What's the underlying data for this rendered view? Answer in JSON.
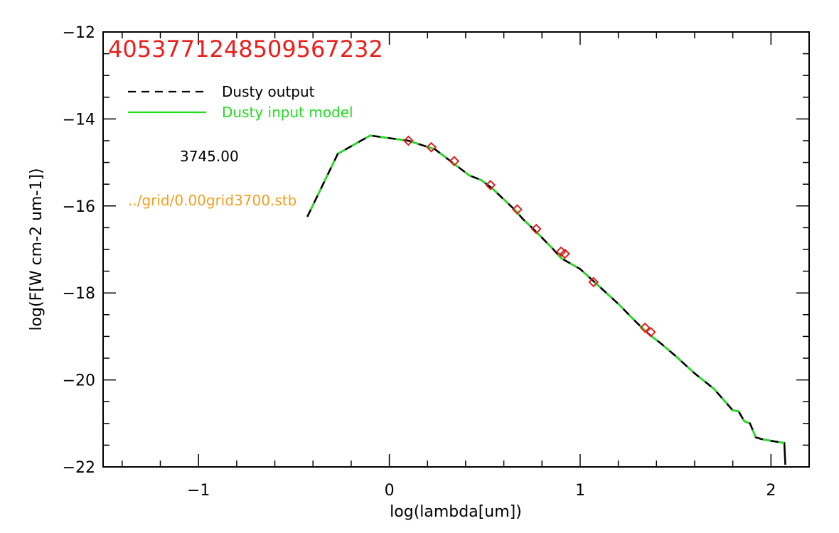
{
  "chart_data": {
    "type": "line",
    "title": "4053771248509567232",
    "xlabel": "log(lambda[um])",
    "ylabel": "log(F[W cm-2 um-1])",
    "xlim": [
      -1.5,
      2.2
    ],
    "ylim": [
      -22,
      -12
    ],
    "xticks": [
      -1,
      0,
      1,
      2
    ],
    "xtick_labels": [
      "−1",
      "0",
      "1",
      "2"
    ],
    "yticks": [
      -22,
      -20,
      -18,
      -16,
      -14,
      -12
    ],
    "ytick_labels": [
      "−22",
      "−20",
      "−18",
      "−16",
      "−14",
      "−12"
    ],
    "legend_position": "top-left",
    "grid": false,
    "annotations": {
      "temperature": "3745.00",
      "grid_file": "../grid/0.00grid3700.stb"
    },
    "colors": {
      "title": "#e8201e",
      "dusty_output": "#000000",
      "dusty_input": "#22dd22",
      "grid_file": "#f0a020",
      "markers": "#dd1f1f"
    },
    "series": [
      {
        "name": "Dusty output",
        "style": "dashed",
        "x": [
          -0.43,
          -0.27,
          -0.1,
          0.1,
          0.24,
          0.33,
          0.42,
          0.48,
          0.54,
          0.6,
          0.66,
          0.7,
          0.76,
          0.86,
          0.9,
          1.0,
          1.1,
          1.2,
          1.3,
          1.36,
          1.42,
          1.5,
          1.6,
          1.7,
          1.8,
          1.83,
          1.86,
          1.89,
          1.92,
          1.95,
          2.0,
          2.07,
          2.075
        ],
        "y": [
          -16.25,
          -14.8,
          -14.38,
          -14.5,
          -14.7,
          -15.0,
          -15.3,
          -15.4,
          -15.6,
          -15.85,
          -16.1,
          -16.3,
          -16.55,
          -17.0,
          -17.2,
          -17.45,
          -17.85,
          -18.25,
          -18.7,
          -18.95,
          -19.15,
          -19.45,
          -19.85,
          -20.2,
          -20.7,
          -20.72,
          -20.95,
          -21.0,
          -21.32,
          -21.36,
          -21.4,
          -21.45,
          -21.95
        ]
      },
      {
        "name": "Dusty input model",
        "style": "solid",
        "x": [
          -0.43,
          -0.27,
          -0.1,
          0.1,
          0.24,
          0.33,
          0.42,
          0.48,
          0.54,
          0.6,
          0.66,
          0.7,
          0.76,
          0.86,
          0.9,
          1.0,
          1.1,
          1.2,
          1.3,
          1.36,
          1.42,
          1.5,
          1.6,
          1.7,
          1.8,
          1.83,
          1.86,
          1.89,
          1.92,
          1.95,
          2.0,
          2.07
        ],
        "y": [
          -16.25,
          -14.8,
          -14.38,
          -14.5,
          -14.7,
          -15.0,
          -15.3,
          -15.4,
          -15.6,
          -15.85,
          -16.1,
          -16.3,
          -16.55,
          -17.0,
          -17.2,
          -17.45,
          -17.85,
          -18.25,
          -18.7,
          -18.95,
          -19.15,
          -19.45,
          -19.85,
          -20.2,
          -20.7,
          -20.72,
          -20.95,
          -21.0,
          -21.32,
          -21.36,
          -21.4,
          -21.45
        ]
      }
    ],
    "markers": {
      "shape": "diamond",
      "x": [
        0.1,
        0.22,
        0.34,
        0.53,
        0.67,
        0.77,
        0.9,
        0.92,
        1.07,
        1.34,
        1.37
      ],
      "y": [
        -14.5,
        -14.65,
        -14.97,
        -15.52,
        -16.08,
        -16.53,
        -17.05,
        -17.1,
        -17.75,
        -18.8,
        -18.9
      ]
    }
  }
}
